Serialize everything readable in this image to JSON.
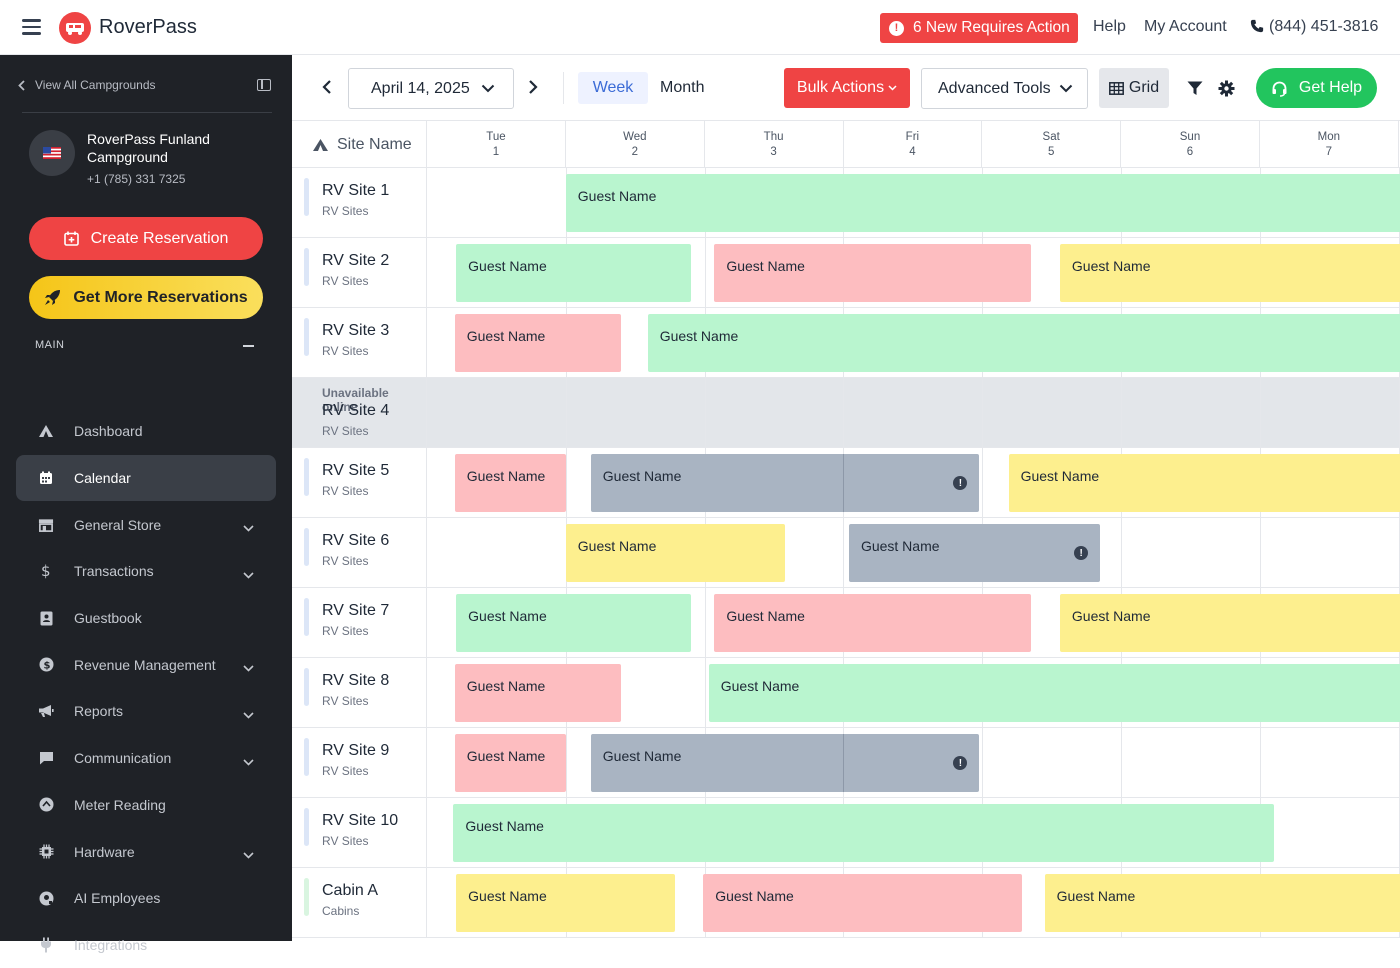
{
  "header": {
    "brand": "RoverPass",
    "action_badge": "6 New Requires Action",
    "help": "Help",
    "account": "My Account",
    "phone": "(844) 451-3816"
  },
  "sidebar": {
    "view_all": "View All Campgrounds",
    "campground_name": "RoverPass Funland Campground",
    "campground_phone": "+1 (785) 331 7325",
    "create_reservation": "Create Reservation",
    "get_more_reservations": "Get More Reservations",
    "section_label": "MAIN",
    "items": [
      {
        "label": "Dashboard",
        "icon": "camp-tent-icon",
        "chevron": false,
        "active": false
      },
      {
        "label": "Calendar",
        "icon": "calendar-icon",
        "chevron": false,
        "active": true
      },
      {
        "label": "General Store",
        "icon": "store-icon",
        "chevron": true,
        "active": false
      },
      {
        "label": "Transactions",
        "icon": "dollar-icon",
        "chevron": true,
        "active": false
      },
      {
        "label": "Guestbook",
        "icon": "guestbook-icon",
        "chevron": false,
        "active": false
      },
      {
        "label": "Revenue Management",
        "icon": "revenue-icon",
        "chevron": true,
        "active": false
      },
      {
        "label": "Reports",
        "icon": "megaphone-icon",
        "chevron": true,
        "active": false
      },
      {
        "label": "Communication",
        "icon": "chat-icon",
        "chevron": true,
        "active": false
      },
      {
        "label": "Meter Reading",
        "icon": "meter-icon",
        "chevron": false,
        "active": false
      },
      {
        "label": "Hardware",
        "icon": "chip-icon",
        "chevron": true,
        "active": false
      },
      {
        "label": "AI Employees",
        "icon": "ai-icon",
        "chevron": false,
        "active": false
      },
      {
        "label": "Integrations",
        "icon": "plug-icon",
        "chevron": false,
        "active": false
      }
    ]
  },
  "toolbar": {
    "date": "April 14, 2025",
    "week": "Week",
    "month": "Month",
    "bulk_actions": "Bulk Actions",
    "advanced_tools": "Advanced Tools",
    "grid": "Grid",
    "get_help": "Get Help"
  },
  "calendar": {
    "site_header": "Site Name",
    "days": [
      {
        "dow": "Tue",
        "num": "1"
      },
      {
        "dow": "Wed",
        "num": "2"
      },
      {
        "dow": "Thu",
        "num": "3"
      },
      {
        "dow": "Fri",
        "num": "4"
      },
      {
        "dow": "Sat",
        "num": "5"
      },
      {
        "dow": "Sun",
        "num": "6"
      },
      {
        "dow": "Mon",
        "num": "7"
      }
    ],
    "rows": [
      {
        "name": "RV Site 1",
        "type": "RV Sites",
        "bookings": [
          {
            "label": "Guest Name",
            "color": "green",
            "start": 1.0,
            "end": 7.2
          }
        ]
      },
      {
        "name": "RV Site 2",
        "type": "RV Sites",
        "bookings": [
          {
            "label": "Guest Name",
            "color": "green",
            "start": 0.21,
            "end": 1.9
          },
          {
            "label": "Guest Name",
            "color": "red",
            "start": 2.07,
            "end": 4.35
          },
          {
            "label": "Guest Name",
            "color": "yellow",
            "start": 4.56,
            "end": 7.2
          }
        ]
      },
      {
        "name": "RV Site 3",
        "type": "RV Sites",
        "bookings": [
          {
            "label": "Guest Name",
            "color": "red",
            "start": 0.2,
            "end": 1.4
          },
          {
            "label": "Guest Name",
            "color": "green",
            "start": 1.59,
            "end": 7.2
          }
        ]
      },
      {
        "name": "RV Site 4",
        "type": "RV Sites",
        "unavailable": "Unavailable online",
        "bookings": []
      },
      {
        "name": "RV Site 5",
        "type": "RV Sites",
        "bookings": [
          {
            "label": "Guest Name",
            "color": "red",
            "start": 0.2,
            "end": 1.0
          },
          {
            "label": "Guest Name",
            "color": "gray",
            "start": 1.18,
            "end": 3.98,
            "info": true
          },
          {
            "label": "Guest Name",
            "color": "yellow",
            "start": 4.19,
            "end": 7.2
          }
        ]
      },
      {
        "name": "RV Site 6",
        "type": "RV Sites",
        "bookings": [
          {
            "label": "Guest Name",
            "color": "yellow",
            "start": 1.0,
            "end": 2.58
          },
          {
            "label": "Guest Name",
            "color": "gray",
            "start": 3.04,
            "end": 4.85,
            "info": true
          }
        ]
      },
      {
        "name": "RV Site 7",
        "type": "RV Sites",
        "bookings": [
          {
            "label": "Guest Name",
            "color": "green",
            "start": 0.21,
            "end": 1.9
          },
          {
            "label": "Guest Name",
            "color": "red",
            "start": 2.07,
            "end": 4.35
          },
          {
            "label": "Guest Name",
            "color": "yellow",
            "start": 4.56,
            "end": 7.2
          }
        ]
      },
      {
        "name": "RV Site 8",
        "type": "RV Sites",
        "bookings": [
          {
            "label": "Guest Name",
            "color": "red",
            "start": 0.2,
            "end": 1.4
          },
          {
            "label": "Guest Name",
            "color": "green",
            "start": 2.03,
            "end": 7.2
          }
        ]
      },
      {
        "name": "RV Site 9",
        "type": "RV Sites",
        "bookings": [
          {
            "label": "Guest Name",
            "color": "red",
            "start": 0.2,
            "end": 1.0
          },
          {
            "label": "Guest Name",
            "color": "gray",
            "start": 1.18,
            "end": 3.98,
            "info": true
          }
        ]
      },
      {
        "name": "RV Site 10",
        "type": "RV Sites",
        "bookings": [
          {
            "label": "Guest Name",
            "color": "green",
            "start": 0.19,
            "end": 6.1
          }
        ]
      },
      {
        "name": "Cabin A",
        "type": "Cabins",
        "cabin": true,
        "bookings": [
          {
            "label": "Guest Name",
            "color": "yellow",
            "start": 0.21,
            "end": 1.79
          },
          {
            "label": "Guest Name",
            "color": "red",
            "start": 1.99,
            "end": 4.29
          },
          {
            "label": "Guest Name",
            "color": "yellow",
            "start": 4.45,
            "end": 7.2
          }
        ]
      }
    ]
  }
}
